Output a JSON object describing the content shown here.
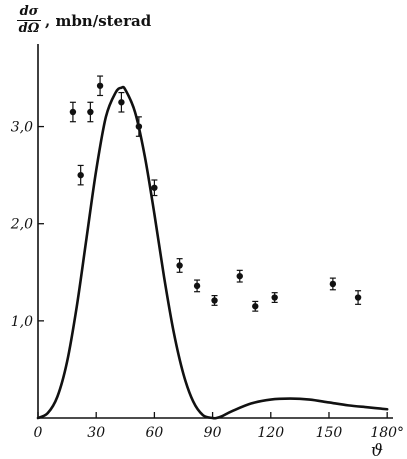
{
  "chart_data": {
    "type": "line",
    "ylabel": {
      "numerator": "dσ",
      "denominator": "dΩ",
      "unit": ", mbn/sterad"
    },
    "xlabel": "ϑ",
    "xlim": [
      0,
      183
    ],
    "ylim": [
      0,
      3.85
    ],
    "x_ticks": [
      {
        "value": 0,
        "label": "0"
      },
      {
        "value": 30,
        "label": "30"
      },
      {
        "value": 60,
        "label": "60"
      },
      {
        "value": 90,
        "label": "90"
      },
      {
        "value": 120,
        "label": "120"
      },
      {
        "value": 150,
        "label": "150"
      },
      {
        "value": 180,
        "label": "180°"
      }
    ],
    "y_ticks": [
      {
        "value": 1.0,
        "label": "1,0"
      },
      {
        "value": 2.0,
        "label": "2,0"
      },
      {
        "value": 3.0,
        "label": "3,0"
      }
    ],
    "grid": false,
    "legend": "none",
    "series": [
      {
        "kind": "curve",
        "style": "solid",
        "color": "#111111",
        "x": [
          0,
          5,
          10,
          15,
          20,
          25,
          30,
          35,
          40,
          43,
          45,
          50,
          55,
          60,
          65,
          70,
          75,
          80,
          85,
          90,
          92,
          95,
          100,
          110,
          120,
          130,
          140,
          150,
          160,
          170,
          180
        ],
        "y": [
          0,
          0.05,
          0.22,
          0.58,
          1.15,
          1.85,
          2.55,
          3.1,
          3.35,
          3.4,
          3.38,
          3.15,
          2.7,
          2.1,
          1.45,
          0.88,
          0.45,
          0.17,
          0.03,
          0.0,
          0.0,
          0.02,
          0.07,
          0.15,
          0.19,
          0.2,
          0.19,
          0.16,
          0.13,
          0.11,
          0.09
        ]
      },
      {
        "kind": "points",
        "marker": "filled-circle",
        "error_bars": true,
        "color": "#111111",
        "x": [
          18,
          22,
          27,
          32,
          43,
          52,
          60,
          73,
          82,
          91,
          104,
          112,
          122,
          152,
          165
        ],
        "y": [
          3.15,
          2.5,
          3.15,
          3.42,
          3.25,
          3.0,
          2.37,
          1.57,
          1.36,
          1.21,
          1.46,
          1.15,
          1.24,
          1.38,
          1.24
        ],
        "err": [
          0.1,
          0.1,
          0.1,
          0.1,
          0.1,
          0.1,
          0.08,
          0.07,
          0.06,
          0.05,
          0.06,
          0.05,
          0.05,
          0.06,
          0.07
        ]
      }
    ]
  }
}
